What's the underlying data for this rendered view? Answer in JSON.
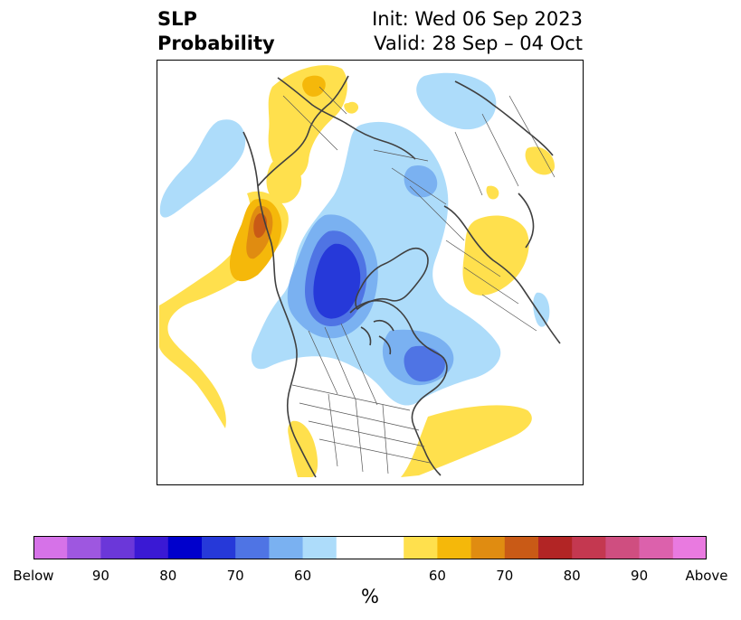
{
  "title": {
    "left_line1": "SLP",
    "left_line2": "Probability",
    "right_line1": "Init: Wed 06 Sep 2023",
    "right_line2": "Valid: 28 Sep – 04 Oct"
  },
  "colorbar": {
    "unit": "%",
    "colors": [
      "#d672e8",
      "#9e57e0",
      "#6b37d9",
      "#3a19d4",
      "#0000cc",
      "#2639d9",
      "#4f74e4",
      "#7ab1f1",
      "#addcfa",
      "#ffffff",
      "#ffffff",
      "#ffe04d",
      "#f5b80a",
      "#e08c11",
      "#c95a16",
      "#b22525",
      "#c43850",
      "#cf4e80",
      "#dc61ac",
      "#e97ae0"
    ],
    "tick_labels": [
      {
        "text": "Below",
        "index": 0
      },
      {
        "text": "90",
        "index": 2
      },
      {
        "text": "80",
        "index": 4
      },
      {
        "text": "70",
        "index": 6
      },
      {
        "text": "60",
        "index": 8
      },
      {
        "text": "60",
        "index": 12
      },
      {
        "text": "70",
        "index": 14
      },
      {
        "text": "80",
        "index": 16
      },
      {
        "text": "90",
        "index": 18
      },
      {
        "text": "Above",
        "index": 20
      }
    ]
  },
  "map": {
    "projection": "north-polar-stereographic",
    "colors": {
      "below_light": "#addcfa",
      "below_mid": "#7ab1f1",
      "below_dark": "#4f74e4",
      "below_core": "#2639d9",
      "above_light": "#ffe04d",
      "above_mid": "#f5b80a",
      "above_dark": "#e08c11",
      "above_core": "#c95a16",
      "coastline": "#404040",
      "border": "#555555"
    }
  }
}
